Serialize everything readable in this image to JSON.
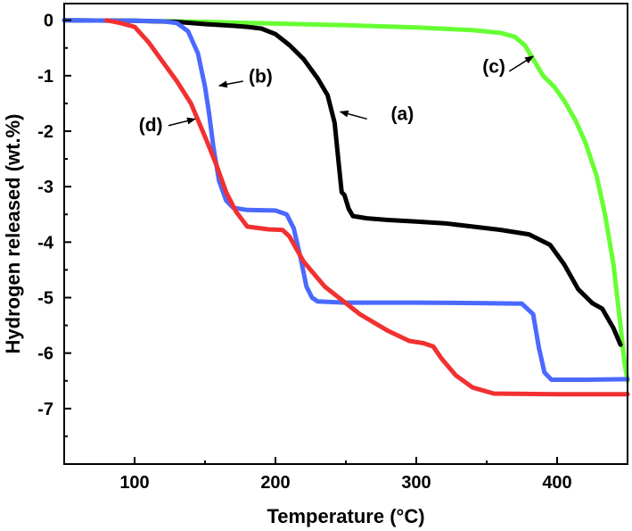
{
  "chart_data": {
    "type": "line",
    "xlabel": "Temperature (°C)",
    "ylabel": "Hydrogen released (wt.%)",
    "xlim": [
      50,
      450
    ],
    "ylim": [
      -8,
      0.3
    ],
    "xticks": [
      "100",
      "200",
      "300",
      "400"
    ],
    "yticks": [
      "0",
      "-1",
      "-2",
      "-3",
      "-4",
      "-5",
      "-6",
      "-7"
    ],
    "grid": false,
    "legend": "none",
    "series": [
      {
        "name": "(a)",
        "color": "#000000",
        "points": [
          [
            50,
            0
          ],
          [
            100,
            -0.01
          ],
          [
            130,
            -0.03
          ],
          [
            150,
            -0.07
          ],
          [
            170,
            -0.1
          ],
          [
            180,
            -0.12
          ],
          [
            190,
            -0.15
          ],
          [
            200,
            -0.25
          ],
          [
            210,
            -0.45
          ],
          [
            220,
            -0.7
          ],
          [
            230,
            -1.05
          ],
          [
            237,
            -1.35
          ],
          [
            242,
            -1.85
          ],
          [
            245,
            -2.6
          ],
          [
            247,
            -3.1
          ],
          [
            249,
            -3.15
          ],
          [
            252,
            -3.4
          ],
          [
            255,
            -3.53
          ],
          [
            265,
            -3.57
          ],
          [
            280,
            -3.6
          ],
          [
            300,
            -3.63
          ],
          [
            320,
            -3.66
          ],
          [
            340,
            -3.72
          ],
          [
            360,
            -3.78
          ],
          [
            380,
            -3.86
          ],
          [
            395,
            -4.05
          ],
          [
            405,
            -4.4
          ],
          [
            415,
            -4.85
          ],
          [
            425,
            -5.1
          ],
          [
            432,
            -5.2
          ],
          [
            440,
            -5.55
          ],
          [
            445,
            -5.85
          ]
        ]
      },
      {
        "name": "(b)",
        "color": "#4a69ff",
        "points": [
          [
            50,
            0
          ],
          [
            100,
            -0.01
          ],
          [
            120,
            -0.02
          ],
          [
            130,
            -0.05
          ],
          [
            138,
            -0.2
          ],
          [
            145,
            -0.6
          ],
          [
            150,
            -1.2
          ],
          [
            153,
            -1.7
          ],
          [
            156,
            -2.3
          ],
          [
            160,
            -2.9
          ],
          [
            165,
            -3.25
          ],
          [
            170,
            -3.38
          ],
          [
            180,
            -3.42
          ],
          [
            200,
            -3.43
          ],
          [
            208,
            -3.5
          ],
          [
            213,
            -3.75
          ],
          [
            218,
            -4.3
          ],
          [
            222,
            -4.8
          ],
          [
            226,
            -5.0
          ],
          [
            230,
            -5.07
          ],
          [
            250,
            -5.09
          ],
          [
            300,
            -5.09
          ],
          [
            350,
            -5.1
          ],
          [
            375,
            -5.11
          ],
          [
            383,
            -5.3
          ],
          [
            387,
            -5.9
          ],
          [
            391,
            -6.35
          ],
          [
            396,
            -6.48
          ],
          [
            420,
            -6.48
          ],
          [
            450,
            -6.47
          ]
        ]
      },
      {
        "name": "(c)",
        "color": "#66ff33",
        "points": [
          [
            50,
            0
          ],
          [
            100,
            -0.01
          ],
          [
            150,
            -0.03
          ],
          [
            200,
            -0.06
          ],
          [
            250,
            -0.09
          ],
          [
            300,
            -0.13
          ],
          [
            340,
            -0.18
          ],
          [
            360,
            -0.23
          ],
          [
            370,
            -0.3
          ],
          [
            377,
            -0.45
          ],
          [
            383,
            -0.7
          ],
          [
            390,
            -1.0
          ],
          [
            398,
            -1.2
          ],
          [
            405,
            -1.45
          ],
          [
            413,
            -1.8
          ],
          [
            420,
            -2.2
          ],
          [
            428,
            -2.8
          ],
          [
            434,
            -3.5
          ],
          [
            440,
            -4.4
          ],
          [
            445,
            -5.5
          ],
          [
            448,
            -6.2
          ],
          [
            450,
            -6.5
          ]
        ]
      },
      {
        "name": "(d)",
        "color": "#f23030",
        "points": [
          [
            80,
            0
          ],
          [
            90,
            -0.05
          ],
          [
            100,
            -0.12
          ],
          [
            110,
            -0.4
          ],
          [
            120,
            -0.75
          ],
          [
            130,
            -1.1
          ],
          [
            140,
            -1.5
          ],
          [
            150,
            -2.1
          ],
          [
            158,
            -2.6
          ],
          [
            165,
            -3.1
          ],
          [
            172,
            -3.45
          ],
          [
            180,
            -3.72
          ],
          [
            195,
            -3.77
          ],
          [
            205,
            -3.78
          ],
          [
            210,
            -3.9
          ],
          [
            220,
            -4.35
          ],
          [
            235,
            -4.8
          ],
          [
            260,
            -5.3
          ],
          [
            280,
            -5.6
          ],
          [
            295,
            -5.78
          ],
          [
            305,
            -5.82
          ],
          [
            312,
            -5.88
          ],
          [
            318,
            -6.1
          ],
          [
            328,
            -6.4
          ],
          [
            340,
            -6.62
          ],
          [
            355,
            -6.73
          ],
          [
            400,
            -6.74
          ],
          [
            450,
            -6.74
          ]
        ]
      }
    ],
    "annotations": [
      {
        "label": "(a)",
        "text_at": [
          282,
          -1.8
        ],
        "arrow_from": [
          265,
          -1.78
        ],
        "arrow_to": [
          246,
          -1.65
        ]
      },
      {
        "label": "(b)",
        "text_at": [
          181,
          -1.12
        ],
        "arrow_from": [
          177,
          -1.1
        ],
        "arrow_to": [
          160,
          -1.18
        ]
      },
      {
        "label": "(c)",
        "text_at": [
          347,
          -0.95
        ],
        "arrow_from": [
          366,
          -0.92
        ],
        "arrow_to": [
          383,
          -0.65
        ]
      },
      {
        "label": "(d)",
        "text_at": [
          103,
          -2.0
        ],
        "arrow_from": [
          124,
          -1.9
        ],
        "arrow_to": [
          143,
          -1.78
        ]
      }
    ]
  }
}
